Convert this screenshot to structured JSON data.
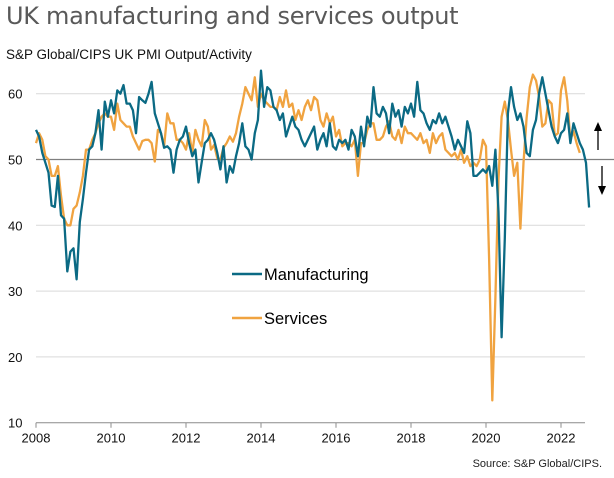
{
  "chart_data": {
    "type": "line",
    "title": "UK manufacturing and services output",
    "subtitle": "S&P Global/CIPS UK PMI Output/Activity",
    "source": "Source: S&P Global/CIPS.",
    "xlabel": "",
    "ylabel": "",
    "x_start": "2008-01",
    "x_frequency": "monthly",
    "x_ticks": [
      "2008",
      "2010",
      "2012",
      "2014",
      "2016",
      "2018",
      "2020",
      "2022"
    ],
    "y_ticks": [
      10,
      20,
      30,
      40,
      50,
      60
    ],
    "ylim": [
      10,
      65
    ],
    "xlim": [
      "2008-01",
      "2022-08"
    ],
    "reference_line": 50,
    "grid": true,
    "legend_position": "center",
    "annotations": [
      "up-arrow",
      "down-arrow"
    ],
    "series": [
      {
        "name": "Manufacturing",
        "color": "#0b6a84",
        "values": [
          54.5,
          53.5,
          51.0,
          49.5,
          48.0,
          43.0,
          42.8,
          47.5,
          41.5,
          41.0,
          33.0,
          36.0,
          36.5,
          31.8,
          40.5,
          44.0,
          48.0,
          51.5,
          52.0,
          54.0,
          57.5,
          51.5,
          58.8,
          56.5,
          59.0,
          57.0,
          60.5,
          60.0,
          61.3,
          58.5,
          58.5,
          57.5,
          54.0,
          59.5,
          59.0,
          58.6,
          60.0,
          61.8,
          57.0,
          55.5,
          54.0,
          51.8,
          52.0,
          51.5,
          48.0,
          51.5,
          53.0,
          53.5,
          55.0,
          52.5,
          50.5,
          51.5,
          46.5,
          49.5,
          52.5,
          53.0,
          54.0,
          53.0,
          51.0,
          48.5,
          52.0,
          46.5,
          49.0,
          48.0,
          50.5,
          52.5,
          55.5,
          52.0,
          51.5,
          50.0,
          54.0,
          56.0,
          63.5,
          58.0,
          61.0,
          60.5,
          58.0,
          57.5,
          56.0,
          57.0,
          53.5,
          55.0,
          56.5,
          55.0,
          54.5,
          53.0,
          52.0,
          53.0,
          54.0,
          55.0,
          51.5,
          53.0,
          54.0,
          52.0,
          55.5,
          52.0,
          51.5,
          53.0,
          52.5,
          53.0,
          51.5,
          54.5,
          53.5,
          50.5,
          55.0,
          52.0,
          56.5,
          55.0,
          61.0,
          57.0,
          56.5,
          58.0,
          57.0,
          54.0,
          58.5,
          56.5,
          57.5,
          55.0,
          58.0,
          57.0,
          58.5,
          56.5,
          61.8,
          57.5,
          57.0,
          55.5,
          54.5,
          56.0,
          55.5,
          57.0,
          55.5,
          56.5,
          55.0,
          53.5,
          51.5,
          53.0,
          52.0,
          51.0,
          55.8,
          54.0,
          47.5,
          47.5,
          48.0,
          48.5,
          48.0,
          49.0,
          46.0,
          51.5,
          42.0,
          23.0,
          38.0,
          57.0,
          61.0,
          58.0,
          56.0,
          57.0,
          55.0,
          51.0,
          50.5,
          54.5,
          56.0,
          60.0,
          62.5,
          60.0,
          57.5,
          55.0,
          53.5,
          52.5,
          54.0,
          54.5,
          57.0,
          52.5,
          55.5,
          54.0,
          52.5,
          51.5,
          49.5,
          42.7
        ]
      },
      {
        "name": "Services",
        "color": "#f0a340",
        "values": [
          52.5,
          54.0,
          53.0,
          50.5,
          50.0,
          47.5,
          47.5,
          49.0,
          44.5,
          41.0,
          40.0,
          40.0,
          42.5,
          43.0,
          45.0,
          47.5,
          51.5,
          51.5,
          53.0,
          54.0,
          55.5,
          56.5,
          57.0,
          56.5,
          56.5,
          54.5,
          58.5,
          56.0,
          55.5,
          55.0,
          55.0,
          53.5,
          52.5,
          51.5,
          52.8,
          53.0,
          53.0,
          52.5,
          49.7,
          54.5,
          54.0,
          52.0,
          57.0,
          55.5,
          55.5,
          53.0,
          53.0,
          52.5,
          51.5,
          54.0,
          51.0,
          54.5,
          53.0,
          52.0,
          56.0,
          55.0,
          51.5,
          52.2,
          50.2,
          50.0,
          51.8,
          52.5,
          53.5,
          52.7,
          54.0,
          56.5,
          58.5,
          61.0,
          60.0,
          59.0,
          62.5,
          58.0,
          60.0,
          59.0,
          58.5,
          58.0,
          58.0,
          57.5,
          59.5,
          58.0,
          60.5,
          58.0,
          58.5,
          56.0,
          57.5,
          56.0,
          58.0,
          59.0,
          57.5,
          59.5,
          59.0,
          56.0,
          55.0,
          57.0,
          55.5,
          56.5,
          53.5,
          54.5,
          52.0,
          52.5,
          52.5,
          52.0,
          53.0,
          47.5,
          52.5,
          52.5,
          54.5,
          55.5,
          55.5,
          53.0,
          53.0,
          53.5,
          55.0,
          55.8,
          53.5,
          53.0,
          54.5,
          52.5,
          55.0,
          54.0,
          54.0,
          53.5,
          53.0,
          54.0,
          52.5,
          53.0,
          51.0,
          54.0,
          52.5,
          53.5,
          54.0,
          51.5,
          51.0,
          50.5,
          51.0,
          50.0,
          51.5,
          49.5,
          50.5,
          49.0,
          49.5,
          49.0,
          50.0,
          53.0,
          52.0,
          35.0,
          13.4,
          29.0,
          47.0,
          56.5,
          58.8,
          56.0,
          51.5,
          47.5,
          49.5,
          39.5,
          49.5,
          56.3,
          61.0,
          62.9,
          62.0,
          59.5,
          55.0,
          55.5,
          59.0,
          58.5,
          53.6,
          54.0,
          60.5,
          62.5,
          58.9,
          53.0,
          54.3,
          52.5,
          51.0
        ]
      }
    ]
  }
}
